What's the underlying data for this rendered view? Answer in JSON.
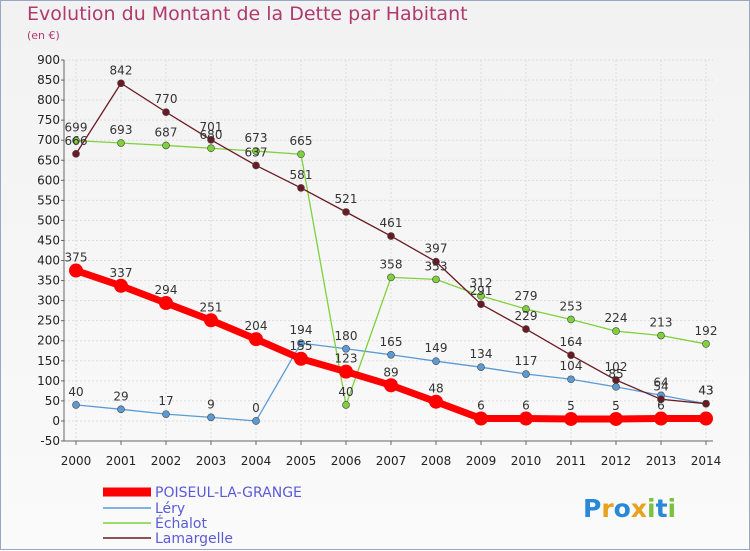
{
  "title": "Evolution du Montant de la Dette par Habitant",
  "unit": "(en €)",
  "logo": {
    "text": "Proxiti",
    "letters": [
      "P",
      "r",
      "o",
      "x",
      "i",
      "t",
      "i"
    ],
    "colors": [
      "#2a89d6",
      "#e8a21e",
      "#2a89d6",
      "#e8a21e",
      "#7cc242",
      "#2a89d6",
      "#7cc242"
    ]
  },
  "chart_data": {
    "type": "line",
    "title": "Evolution du Montant de la Dette par Habitant",
    "ylabel": "(en €)",
    "xlabel": "",
    "ylim": [
      -50,
      900
    ],
    "yticks": [
      -50,
      0,
      50,
      100,
      150,
      200,
      250,
      300,
      350,
      400,
      450,
      500,
      550,
      600,
      650,
      700,
      750,
      800,
      850,
      900
    ],
    "x": [
      "2000",
      "2001",
      "2002",
      "2003",
      "2004",
      "2005",
      "2006",
      "2007",
      "2008",
      "2009",
      "2010",
      "2011",
      "2012",
      "2013",
      "2014"
    ],
    "grid": true,
    "legend": "bottom-left",
    "series": [
      {
        "name": "POISEUL-LA-GRANGE",
        "color": "#ff0000",
        "values": [
          375,
          337,
          294,
          251,
          204,
          155,
          123,
          89,
          48,
          6,
          6,
          5,
          5,
          6,
          6
        ],
        "labels": [
          "375",
          "337",
          "294",
          "251",
          "204",
          "155",
          "123",
          "89",
          "48",
          "6",
          "6",
          "5",
          "5",
          "6",
          ""
        ]
      },
      {
        "name": "Léry",
        "color": "#5b9bd5",
        "values": [
          40,
          29,
          17,
          9,
          0,
          194,
          180,
          165,
          149,
          134,
          117,
          104,
          85,
          64,
          43
        ],
        "labels": [
          "40",
          "29",
          "17",
          "9",
          "0",
          "194",
          "180",
          "165",
          "149",
          "134",
          "117",
          "104",
          "85",
          "64",
          "43"
        ]
      },
      {
        "name": "Échalot",
        "color": "#7fd13b",
        "values": [
          699,
          693,
          687,
          680,
          673,
          665,
          40,
          358,
          353,
          312,
          279,
          253,
          224,
          213,
          192
        ],
        "labels": [
          "699",
          "693",
          "687",
          "680",
          "673",
          "665",
          "40",
          "358",
          "353",
          "312",
          "279",
          "253",
          "224",
          "213",
          "192"
        ]
      },
      {
        "name": "Lamargelle",
        "color": "#6b1a24",
        "values": [
          666,
          842,
          770,
          701,
          637,
          581,
          521,
          461,
          397,
          291,
          229,
          164,
          102,
          54,
          43
        ],
        "labels": [
          "666",
          "842",
          "770",
          "701",
          "637",
          "581",
          "521",
          "461",
          "397",
          "291",
          "229",
          "164",
          "102",
          "54",
          "43"
        ]
      }
    ]
  }
}
